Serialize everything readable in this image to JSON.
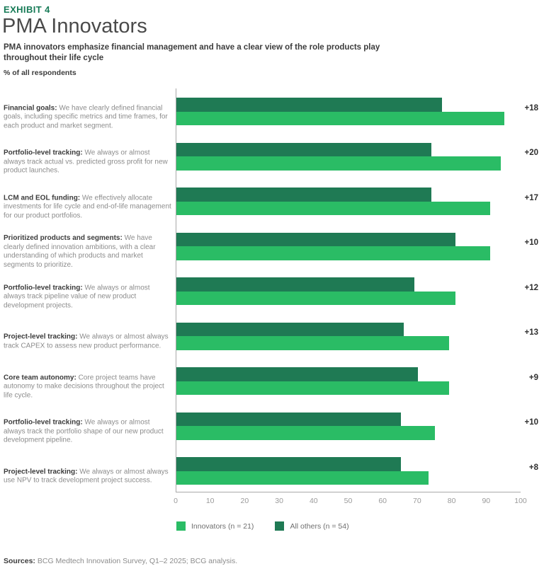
{
  "header": {
    "exhibit": "EXHIBIT 4",
    "title": "PMA Innovators",
    "subtitle": "PMA innovators emphasize financial management and have a clear view of the role products play throughout their life cycle",
    "unit_label": "% of all respondents"
  },
  "chart_data": {
    "type": "bar",
    "orientation": "horizontal",
    "title": "PMA Innovators",
    "xlabel": "% of all respondents",
    "xlim": [
      0,
      100
    ],
    "x_ticks": [
      0,
      10,
      20,
      30,
      40,
      50,
      60,
      70,
      80,
      90,
      100
    ],
    "grid": false,
    "legend_position": "bottom",
    "categories": [
      {
        "lead": "Financial goals:",
        "desc": "We have clearly defined financial goals, including specific metrics and time frames, for each product and market segment."
      },
      {
        "lead": "Portfolio-level tracking:",
        "desc": "We always or almost always track actual vs. predicted gross profit for new product launches."
      },
      {
        "lead": "LCM and EOL funding:",
        "desc": "We effectively allocate investments for life cycle and end-of-life management for our product portfolios."
      },
      {
        "lead": "Prioritized products and segments:",
        "desc": "We have clearly defined innovation ambitions, with a clear understanding of which products and market segments to prioritize."
      },
      {
        "lead": "Portfolio-level tracking:",
        "desc": "We always or almost always track pipeline value of new product development projects."
      },
      {
        "lead": "Project-level tracking:",
        "desc": "We always or almost always track CAPEX to assess new product performance."
      },
      {
        "lead": "Core team autonomy:",
        "desc": "Core project teams have autonomy to make decisions throughout the project life cycle."
      },
      {
        "lead": "Portfolio-level tracking:",
        "desc": "We always or almost always track the portfolio shape of our new product development pipeline."
      },
      {
        "lead": "Project-level tracking:",
        "desc": "We always or almost always use NPV to track development project success."
      }
    ],
    "series": [
      {
        "name": "Innovators (n = 21)",
        "color": "#2ABC65",
        "values": [
          95,
          94,
          91,
          91,
          81,
          79,
          79,
          75,
          73
        ]
      },
      {
        "name": "All others (n = 54)",
        "color": "#1F7A54",
        "values": [
          77,
          74,
          74,
          81,
          69,
          66,
          70,
          65,
          65
        ]
      }
    ],
    "diff_labels": [
      "+18",
      "+20",
      "+17",
      "+10",
      "+12",
      "+13",
      "+9",
      "+10",
      "+8"
    ]
  },
  "footer": {
    "sources_label": "Sources:",
    "sources_text": " BCG Medtech Innovation Survey, Q1–2 2025; BCG analysis."
  },
  "colors": {
    "accent_green": "#177B57",
    "innovators_green": "#2ABC65",
    "all_others_green": "#1F7A54",
    "axis_gray": "#A8A8A8"
  }
}
